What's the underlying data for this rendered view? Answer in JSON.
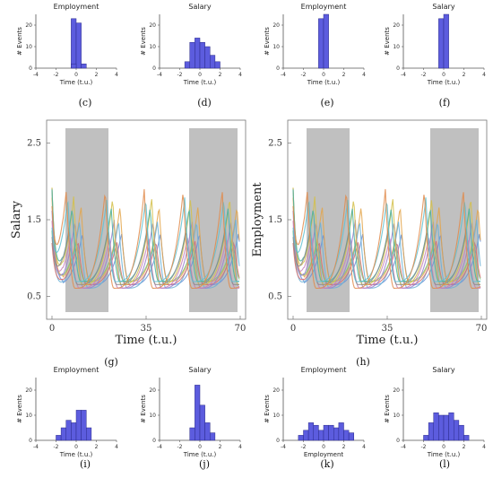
{
  "hist_style": {
    "bar_fill": "#5c5cde",
    "bar_stroke": "#2a2a8a",
    "axis_color": "#555555"
  },
  "line_style": {
    "shade_color": "#c0c0c0",
    "frame_color": "#777777",
    "palette": [
      "#6a8fd8",
      "#e3a44a",
      "#6bb0d6",
      "#d96b6b",
      "#7ec77e",
      "#9a7fd0",
      "#d3c04a",
      "#4ab0a0",
      "#c87fb8",
      "#8a8a8a",
      "#5ec0d0",
      "#e08a4a"
    ]
  },
  "chart_data": [
    {
      "id": "c",
      "type": "bar",
      "title": "Employment",
      "xlabel": "Time (t.u.)",
      "ylabel": "# Events",
      "panel_label": "(c)",
      "xlim": [
        -4,
        4
      ],
      "ylim": [
        0,
        25
      ],
      "xticks": [
        "-4",
        "-2",
        "0",
        "2",
        "4"
      ],
      "yticks": [
        "0",
        "10",
        "20"
      ],
      "bin_edges": [
        -0.5,
        0,
        0.5,
        1
      ],
      "values": [
        23,
        21,
        2
      ],
      "pre": [
        {
          "edge": -1,
          "value": 0
        },
        {
          "edge": -0.5,
          "value": 2
        }
      ]
    },
    {
      "id": "d",
      "type": "bar",
      "title": "Salary",
      "xlabel": "Time (t.u.)",
      "ylabel": "# Events",
      "panel_label": "(d)",
      "xlim": [
        -4,
        4
      ],
      "ylim": [
        0,
        25
      ],
      "xticks": [
        "-4",
        "-2",
        "0",
        "2",
        "4"
      ],
      "yticks": [
        "0",
        "10",
        "20"
      ],
      "bin_edges": [
        -1.5,
        -1,
        -0.5,
        0,
        0.5,
        1,
        1.5,
        2
      ],
      "values": [
        3,
        12,
        14,
        12,
        10,
        6,
        3
      ]
    },
    {
      "id": "e",
      "type": "bar",
      "title": "Employment",
      "xlabel": "Time (t.u.)",
      "ylabel": "# Events",
      "panel_label": "(e)",
      "xlim": [
        -4,
        4
      ],
      "ylim": [
        0,
        25
      ],
      "xticks": [
        "-4",
        "-2",
        "0",
        "2",
        "4"
      ],
      "yticks": [
        "0",
        "10",
        "20"
      ],
      "bin_edges": [
        -0.5,
        0,
        0.5
      ],
      "values": [
        23,
        26
      ]
    },
    {
      "id": "f",
      "type": "bar",
      "title": "Salary",
      "xlabel": "Time (t.u.)",
      "ylabel": "# Events",
      "panel_label": "(f)",
      "xlim": [
        -4,
        4
      ],
      "ylim": [
        0,
        25
      ],
      "xticks": [
        "-4",
        "-2",
        "0",
        "2",
        "4"
      ],
      "yticks": [
        "0",
        "10",
        "20"
      ],
      "bin_edges": [
        -0.5,
        0,
        0.5
      ],
      "values": [
        23,
        26
      ]
    },
    {
      "id": "g",
      "type": "line",
      "ylabel": "Salary",
      "xlabel": "Time (t.u.)",
      "panel_label": "(g)",
      "xlim": [
        -2,
        72
      ],
      "ylim": [
        0.2,
        2.8
      ],
      "xticks": [
        "0",
        "35",
        "70"
      ],
      "ytick_values": [
        0.5,
        1.5,
        2.5
      ],
      "yticks": [
        "0.5",
        "1.5",
        "2.5"
      ],
      "shaded_x": [
        [
          5,
          21
        ],
        [
          51,
          69
        ]
      ],
      "n_series": 12,
      "period": 14.5,
      "base": 0.75,
      "amp": 1.0
    },
    {
      "id": "h",
      "type": "line",
      "ylabel": "Employment",
      "xlabel": "Time (t.u.)",
      "panel_label": "(h)",
      "xlim": [
        -2,
        72
      ],
      "ylim": [
        0.2,
        2.8
      ],
      "xticks": [
        "0",
        "35",
        "70"
      ],
      "ytick_values": [
        0.5,
        1.5,
        2.5
      ],
      "yticks": [
        "0.5",
        "1.5",
        "2.5"
      ],
      "shaded_x": [
        [
          5,
          21
        ],
        [
          51,
          69
        ]
      ],
      "n_series": 12,
      "period": 14.5,
      "base": 0.75,
      "amp": 1.0
    },
    {
      "id": "i",
      "type": "bar",
      "title": "Employment",
      "xlabel": "Time (t.u.)",
      "ylabel": "# Events",
      "panel_label": "(i)",
      "xlim": [
        -4,
        4
      ],
      "ylim": [
        0,
        25
      ],
      "xticks": [
        "-4",
        "-2",
        "0",
        "2",
        "4"
      ],
      "yticks": [
        "0",
        "10",
        "20"
      ],
      "bin_edges": [
        -2,
        -1.5,
        -1,
        -0.5,
        0,
        0.5,
        1,
        1.5
      ],
      "values": [
        2,
        5,
        8,
        7,
        12,
        12,
        5
      ]
    },
    {
      "id": "j",
      "type": "bar",
      "title": "Salary",
      "xlabel": "Time (t.u.)",
      "ylabel": "# Events",
      "panel_label": "(j)",
      "xlim": [
        -4,
        4
      ],
      "ylim": [
        0,
        25
      ],
      "xticks": [
        "-4",
        "-2",
        "0",
        "2",
        "4"
      ],
      "yticks": [
        "0",
        "10",
        "20"
      ],
      "bin_edges": [
        -1,
        -0.5,
        0,
        0.5,
        1,
        1.5
      ],
      "values": [
        5,
        22,
        14,
        7,
        3
      ]
    },
    {
      "id": "k",
      "type": "bar",
      "title": "Employment",
      "xlabel": "Employment",
      "ylabel": "# Events",
      "panel_label": "(k)",
      "xlim": [
        -4,
        4
      ],
      "ylim": [
        0,
        25
      ],
      "xticks": [
        "-4",
        "-2",
        "0",
        "2",
        "4"
      ],
      "yticks": [
        "0",
        "10",
        "20"
      ],
      "bin_edges": [
        -2.5,
        -2,
        -1.5,
        -1,
        -0.5,
        0,
        0.5,
        1,
        1.5,
        2,
        2.5,
        3
      ],
      "values": [
        2,
        4,
        7,
        6,
        4,
        6,
        6,
        5,
        7,
        4,
        3
      ]
    },
    {
      "id": "l",
      "type": "bar",
      "title": "Salary",
      "xlabel": "Time (t.u.)",
      "ylabel": "# Events",
      "panel_label": "(l)",
      "xlim": [
        -4,
        4
      ],
      "ylim": [
        0,
        25
      ],
      "xticks": [
        "-4",
        "-2",
        "0",
        "2",
        "4"
      ],
      "yticks": [
        "0",
        "10",
        "20"
      ],
      "bin_edges": [
        -2,
        -1.5,
        -1,
        -0.5,
        0,
        0.5,
        1,
        1.5,
        2,
        2.5
      ],
      "values": [
        2,
        7,
        11,
        10,
        10,
        11,
        8,
        6,
        2
      ]
    }
  ]
}
